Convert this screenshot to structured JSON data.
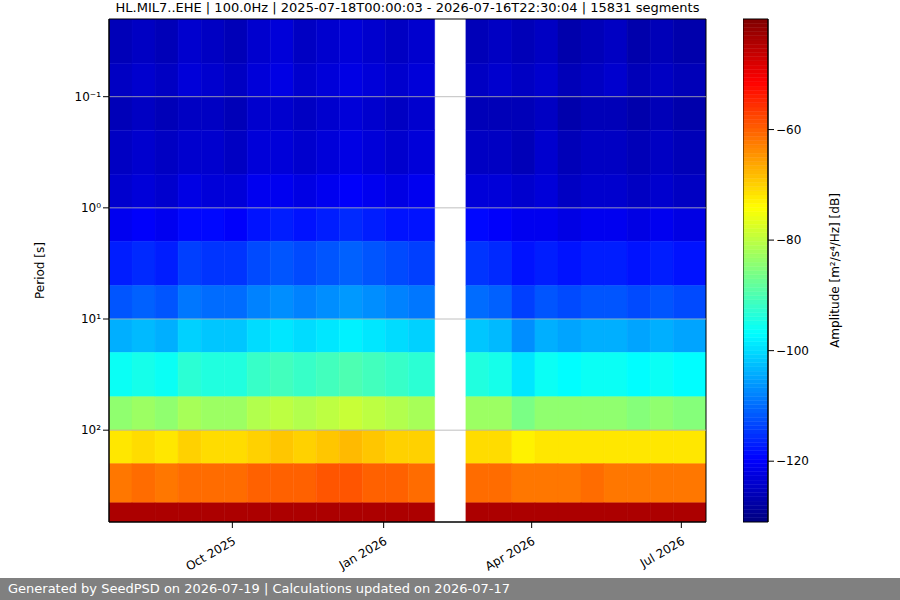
{
  "chart_data": {
    "type": "heatmap",
    "title": "HL.MIL7..EHE | 100.0Hz | 2025-07-18T00:00:03 - 2026-07-16T22:30:04 | 15831 segments",
    "y_label": "Period [s]",
    "footer": "Generated by SeedPSD on 2026-07-19 | Calculations updated on 2026-07-17",
    "color": "jet",
    "log": "y",
    "grid": true,
    "x_edges": [
      "2025-07-18",
      "2025-08-01",
      "2025-08-15",
      "2025-08-29",
      "2025-09-12",
      "2025-09-26",
      "2025-10-10",
      "2025-10-24",
      "2025-11-07",
      "2025-11-21",
      "2025-12-05",
      "2025-12-19",
      "2026-01-02",
      "2026-01-16",
      "2026-02-01",
      "2026-02-20",
      "2026-03-06",
      "2026-03-20",
      "2026-04-03",
      "2026-04-17",
      "2026-05-01",
      "2026-05-15",
      "2026-05-29",
      "2026-06-12",
      "2026-06-26",
      "2026-07-16"
    ],
    "y_edges": [
      0.02,
      0.05,
      0.1,
      0.2,
      0.5,
      1,
      2,
      5,
      10,
      20,
      50,
      100,
      200,
      450,
      670
    ],
    "values": [
      [
        -126,
        -125,
        -126,
        -124,
        -125,
        -126,
        -124,
        -123,
        -125,
        -124,
        -123,
        -124,
        -125,
        -124,
        null,
        -126,
        -125,
        -126,
        -125,
        -127,
        -126,
        -125,
        -127,
        -126,
        -127
      ],
      [
        -125,
        -124,
        -125,
        -123,
        -124,
        -125,
        -123,
        -122,
        -124,
        -123,
        -122,
        -123,
        -124,
        -123,
        null,
        -125,
        -124,
        -125,
        -124,
        -126,
        -125,
        -124,
        -126,
        -125,
        -126
      ],
      [
        -126,
        -125,
        -126,
        -125,
        -125,
        -126,
        -124,
        -124,
        -125,
        -124,
        -123,
        -124,
        -125,
        -124,
        null,
        -126,
        -126,
        -126,
        -125,
        -127,
        -126,
        -126,
        -127,
        -126,
        -127
      ],
      [
        -125,
        -124,
        -125,
        -124,
        -124,
        -125,
        -123,
        -123,
        -124,
        -123,
        -122,
        -123,
        -124,
        -123,
        null,
        -125,
        -125,
        -126,
        -124,
        -126,
        -125,
        -125,
        -126,
        -125,
        -126
      ],
      [
        -124,
        -123,
        -124,
        -122,
        -123,
        -123,
        -121,
        -121,
        -122,
        -121,
        -120,
        -121,
        -122,
        -121,
        null,
        -123,
        -123,
        -124,
        -123,
        -125,
        -124,
        -124,
        -125,
        -124,
        -125
      ],
      [
        -121,
        -120,
        -121,
        -119,
        -119,
        -120,
        -118,
        -117,
        -118,
        -117,
        -116,
        -117,
        -118,
        -118,
        null,
        -119,
        -120,
        -121,
        -121,
        -122,
        -121,
        -121,
        -122,
        -121,
        -122
      ],
      [
        -117,
        -116,
        -117,
        -114,
        -115,
        -115,
        -113,
        -112,
        -113,
        -112,
        -111,
        -112,
        -113,
        -114,
        null,
        -115,
        -116,
        -118,
        -117,
        -118,
        -117,
        -117,
        -118,
        -117,
        -118
      ],
      [
        -112,
        -111,
        -112,
        -109,
        -110,
        -110,
        -108,
        -107,
        -108,
        -107,
        -106,
        -107,
        -108,
        -109,
        null,
        -110,
        -111,
        -114,
        -112,
        -113,
        -112,
        -112,
        -113,
        -112,
        -113
      ],
      [
        -104,
        -103,
        -104,
        -101,
        -102,
        -102,
        -100,
        -99,
        -100,
        -99,
        -98,
        -99,
        -100,
        -101,
        null,
        -102,
        -103,
        -107,
        -104,
        -105,
        -104,
        -104,
        -105,
        -104,
        -105
      ],
      [
        -96,
        -95,
        -96,
        -93,
        -94,
        -94,
        -92,
        -91,
        -92,
        -91,
        -90,
        -91,
        -92,
        -93,
        null,
        -94,
        -95,
        -99,
        -96,
        -97,
        -96,
        -96,
        -97,
        -96,
        -97
      ],
      [
        -84,
        -83,
        -84,
        -82,
        -83,
        -83,
        -81,
        -80,
        -81,
        -80,
        -79,
        -80,
        -81,
        -82,
        null,
        -83,
        -83,
        -86,
        -84,
        -84,
        -84,
        -84,
        -85,
        -84,
        -85
      ],
      [
        -72,
        -71,
        -72,
        -70,
        -71,
        -71,
        -70,
        -69,
        -70,
        -69,
        -68,
        -69,
        -70,
        -70,
        null,
        -71,
        -71,
        -73,
        -72,
        -72,
        -72,
        -72,
        -72,
        -72,
        -72
      ],
      [
        -62,
        -61,
        -62,
        -61,
        -61,
        -61,
        -60,
        -60,
        -60,
        -59,
        -59,
        -60,
        -60,
        -61,
        null,
        -61,
        -61,
        -62,
        -62,
        -62,
        -61,
        -62,
        -62,
        -62,
        -62
      ],
      [
        -44,
        -44,
        -44,
        -44,
        -44,
        -44,
        -44,
        -44,
        -44,
        -44,
        -44,
        -44,
        -44,
        -44,
        null,
        -44,
        -44,
        -44,
        -44,
        -44,
        -44,
        -44,
        -44,
        -44,
        -44
      ]
    ],
    "xlim": [
      "2025-07-18",
      "2026-07-16"
    ],
    "xticks": [
      {
        "value": "2025-10-01",
        "label": "Oct 2025"
      },
      {
        "value": "2026-01-01",
        "label": "Jan 2026"
      },
      {
        "value": "2026-04-01",
        "label": "Apr 2026"
      },
      {
        "value": "2026-07-01",
        "label": "Jul 2026"
      }
    ],
    "ylim": [
      0.02,
      670
    ],
    "yticks": [
      {
        "value": 0.1,
        "label": "10⁻¹"
      },
      {
        "value": 1,
        "label": "10⁰"
      },
      {
        "value": 10,
        "label": "10¹"
      },
      {
        "value": 100,
        "label": "10²"
      }
    ],
    "colorbar": {
      "label": "Amplitude [m²/s⁴/Hz] [dB]",
      "range": [
        -131,
        -40
      ],
      "ticks": [
        {
          "value": -120,
          "label": "−120"
        },
        {
          "value": -100,
          "label": "−100"
        },
        {
          "value": -80,
          "label": "−80"
        },
        {
          "value": -60,
          "label": "−60"
        }
      ]
    }
  }
}
